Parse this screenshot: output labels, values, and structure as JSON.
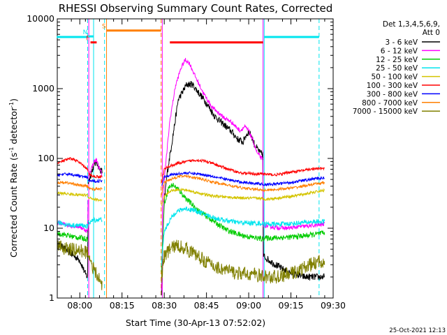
{
  "chart_data": {
    "type": "line",
    "title": "RHESSI Observing Summary Count Rates, Corrected",
    "xlabel": "Start Time (30-Apr-13 07:52:02)",
    "ylabel_main": "Corrected Count Rate (s",
    "ylabel_sup1": "-1",
    "ylabel_mid": " detector",
    "ylabel_sup2": "-1",
    "ylabel_end": ")",
    "footer": "25-Oct-2021 12:13",
    "x_unit": "minutes since 07:52:02",
    "xlim": [
      0,
      98
    ],
    "ylim": [
      1,
      10000
    ],
    "yscale": "log",
    "x_ticks": [
      {
        "label": "08:00",
        "min": 8
      },
      {
        "label": "08:15",
        "min": 23
      },
      {
        "label": "08:30",
        "min": 38
      },
      {
        "label": "08:45",
        "min": 53
      },
      {
        "label": "09:00",
        "min": 68
      },
      {
        "label": "09:15",
        "min": 83
      },
      {
        "label": "09:30",
        "min": 98
      }
    ],
    "y_ticks": [
      {
        "label": "1",
        "value": 1
      },
      {
        "label": "10",
        "value": 10
      },
      {
        "label": "100",
        "value": 100
      },
      {
        "label": "1000",
        "value": 1000
      },
      {
        "label": "10000",
        "value": 10000
      }
    ],
    "legend": {
      "header1": "Det 1,3,4,5,6,9,",
      "header2": "Att 0",
      "entries": [
        {
          "label": "3 - 6 keV",
          "color": "#000000"
        },
        {
          "label": "6 - 12 keV",
          "color": "#ff00ff"
        },
        {
          "label": "12 - 25 keV",
          "color": "#00cc00"
        },
        {
          "label": "25 - 50 keV",
          "color": "#00e5ee"
        },
        {
          "label": "50 - 100 keV",
          "color": "#d4c400"
        },
        {
          "label": "100 - 300 keV",
          "color": "#ff0000"
        },
        {
          "label": "300 - 800 keV",
          "color": "#0000ff"
        },
        {
          "label": "800 - 7000 keV",
          "color": "#ff7f00"
        },
        {
          "label": "7000 - 15000 keV",
          "color": "#808000"
        }
      ]
    },
    "segments": [
      {
        "from": 0,
        "to": 11
      },
      {
        "from": 11,
        "to": 16
      },
      {
        "from": 37,
        "to": 73
      },
      {
        "from": 73,
        "to": 95
      }
    ],
    "series": [
      {
        "name": "3 - 6 keV",
        "color": "#000000",
        "noise": 0.05,
        "points": [
          [
            0,
            6
          ],
          [
            3,
            5
          ],
          [
            6,
            4
          ],
          [
            8,
            3.5
          ],
          [
            10,
            2.2
          ],
          [
            10.8,
            2
          ],
          [
            11,
            45
          ],
          [
            12,
            60
          ],
          [
            13,
            80
          ],
          [
            14,
            90
          ],
          [
            15,
            70
          ],
          [
            16,
            65
          ],
          [
            37,
            1
          ],
          [
            37.8,
            20
          ],
          [
            39,
            60
          ],
          [
            41,
            200
          ],
          [
            43,
            700
          ],
          [
            46,
            1150
          ],
          [
            48,
            1150
          ],
          [
            50,
            900
          ],
          [
            53,
            620
          ],
          [
            56,
            400
          ],
          [
            59,
            310
          ],
          [
            62,
            240
          ],
          [
            64,
            190
          ],
          [
            66,
            170
          ],
          [
            67,
            215
          ],
          [
            68,
            240
          ],
          [
            69,
            210
          ],
          [
            70,
            160
          ],
          [
            72,
            120
          ],
          [
            73,
            115
          ],
          [
            73.2,
            4
          ],
          [
            76,
            3.3
          ],
          [
            80,
            2.6
          ],
          [
            84,
            2.2
          ],
          [
            88,
            2
          ],
          [
            92,
            2
          ],
          [
            95,
            2
          ]
        ]
      },
      {
        "name": "6 - 12 keV",
        "color": "#ff00ff",
        "noise": 0.03,
        "points": [
          [
            0,
            12
          ],
          [
            4,
            11
          ],
          [
            8,
            10.5
          ],
          [
            10.8,
            9
          ],
          [
            11,
            55
          ],
          [
            12,
            70
          ],
          [
            13,
            90
          ],
          [
            14,
            95
          ],
          [
            15,
            70
          ],
          [
            16,
            58
          ],
          [
            37,
            1.3
          ],
          [
            38,
            50
          ],
          [
            40,
            350
          ],
          [
            42,
            1100
          ],
          [
            44,
            2000
          ],
          [
            45.5,
            2600
          ],
          [
            47,
            2300
          ],
          [
            49,
            1500
          ],
          [
            52,
            850
          ],
          [
            55,
            540
          ],
          [
            59,
            390
          ],
          [
            62,
            330
          ],
          [
            64,
            270
          ],
          [
            65,
            250
          ],
          [
            66.5,
            285
          ],
          [
            68,
            250
          ],
          [
            69.5,
            180
          ],
          [
            71,
            120
          ],
          [
            73,
            95
          ],
          [
            73.2,
            11
          ],
          [
            77,
            10.3
          ],
          [
            82,
            10
          ],
          [
            86,
            10.5
          ],
          [
            92,
            11
          ],
          [
            95,
            11.5
          ]
        ]
      },
      {
        "name": "12 - 25 keV",
        "color": "#00cc00",
        "noise": 0.04,
        "points": [
          [
            0,
            8.5
          ],
          [
            3,
            8
          ],
          [
            6,
            7.5
          ],
          [
            8,
            7.3
          ],
          [
            10.8,
            7
          ],
          [
            37,
            2.5
          ],
          [
            38,
            22
          ],
          [
            39.5,
            38
          ],
          [
            41,
            42
          ],
          [
            43,
            36
          ],
          [
            46,
            26
          ],
          [
            50,
            18
          ],
          [
            55,
            13
          ],
          [
            60,
            9.5
          ],
          [
            65,
            8
          ],
          [
            70,
            7.3
          ],
          [
            73,
            7
          ],
          [
            73.2,
            7.2
          ],
          [
            78,
            7.3
          ],
          [
            84,
            7.5
          ],
          [
            90,
            8
          ],
          [
            95,
            8.5
          ]
        ]
      },
      {
        "name": "25 - 50 keV",
        "color": "#00e5ee",
        "noise": 0.035,
        "points": [
          [
            0,
            12
          ],
          [
            5,
            11
          ],
          [
            9,
            11
          ],
          [
            10.8,
            10.5
          ],
          [
            11,
            12
          ],
          [
            13,
            13
          ],
          [
            16,
            13.5
          ],
          [
            37,
            3
          ],
          [
            38,
            9
          ],
          [
            40,
            13
          ],
          [
            42,
            17
          ],
          [
            45,
            19
          ],
          [
            48,
            18.5
          ],
          [
            52,
            16
          ],
          [
            56,
            14
          ],
          [
            60,
            12.8
          ],
          [
            65,
            12
          ],
          [
            70,
            11.8
          ],
          [
            73,
            11.7
          ],
          [
            73.2,
            11.5
          ],
          [
            78,
            11.4
          ],
          [
            84,
            11.7
          ],
          [
            90,
            12.3
          ],
          [
            95,
            12.5
          ]
        ]
      },
      {
        "name": "50 - 100 keV",
        "color": "#d4c400",
        "noise": 0.02,
        "points": [
          [
            0,
            32
          ],
          [
            4,
            31
          ],
          [
            8,
            30
          ],
          [
            10.8,
            30
          ],
          [
            11,
            28
          ],
          [
            13,
            26
          ],
          [
            16,
            25
          ],
          [
            37,
            20
          ],
          [
            38,
            28
          ],
          [
            40,
            34
          ],
          [
            43,
            36
          ],
          [
            46,
            35
          ],
          [
            50,
            32
          ],
          [
            55,
            29
          ],
          [
            60,
            28
          ],
          [
            65,
            27
          ],
          [
            70,
            27
          ],
          [
            73,
            26.5
          ],
          [
            73.2,
            26
          ],
          [
            78,
            27
          ],
          [
            84,
            29
          ],
          [
            90,
            32
          ],
          [
            95,
            35
          ]
        ]
      },
      {
        "name": "100 - 300 keV",
        "color": "#ff0000",
        "noise": 0.02,
        "points": [
          [
            0,
            85
          ],
          [
            3,
            95
          ],
          [
            5,
            100
          ],
          [
            7,
            92
          ],
          [
            9,
            80
          ],
          [
            10.8,
            70
          ],
          [
            11,
            60
          ],
          [
            13,
            55
          ],
          [
            16,
            55
          ],
          [
            37,
            45
          ],
          [
            38,
            70
          ],
          [
            40,
            78
          ],
          [
            43,
            85
          ],
          [
            46,
            90
          ],
          [
            49,
            95
          ],
          [
            52,
            92
          ],
          [
            55,
            85
          ],
          [
            60,
            72
          ],
          [
            65,
            62
          ],
          [
            70,
            60
          ],
          [
            73,
            60
          ],
          [
            73.2,
            60
          ],
          [
            77,
            58
          ],
          [
            80,
            60
          ],
          [
            83,
            64
          ],
          [
            86,
            66
          ],
          [
            90,
            70
          ],
          [
            95,
            72
          ]
        ]
      },
      {
        "name": "300 - 800 keV",
        "color": "#0000ff",
        "noise": 0.02,
        "points": [
          [
            0,
            58
          ],
          [
            4,
            60
          ],
          [
            8,
            56
          ],
          [
            10.8,
            53
          ],
          [
            11,
            48
          ],
          [
            13,
            47
          ],
          [
            16,
            48
          ],
          [
            37,
            40
          ],
          [
            38,
            55
          ],
          [
            40,
            58
          ],
          [
            43,
            60
          ],
          [
            46,
            62
          ],
          [
            50,
            60
          ],
          [
            55,
            56
          ],
          [
            60,
            50
          ],
          [
            65,
            46
          ],
          [
            70,
            44
          ],
          [
            73,
            43
          ],
          [
            73.2,
            42
          ],
          [
            78,
            43
          ],
          [
            84,
            46
          ],
          [
            90,
            50
          ],
          [
            95,
            53
          ]
        ]
      },
      {
        "name": "800 - 7000 keV",
        "color": "#ff7f00",
        "noise": 0.02,
        "points": [
          [
            0,
            45
          ],
          [
            3,
            45
          ],
          [
            6,
            43
          ],
          [
            8,
            41
          ],
          [
            10.8,
            40
          ],
          [
            11,
            38
          ],
          [
            13,
            36
          ],
          [
            16,
            37
          ],
          [
            37,
            30
          ],
          [
            38,
            45
          ],
          [
            40,
            50
          ],
          [
            43,
            55
          ],
          [
            46,
            56
          ],
          [
            50,
            52
          ],
          [
            55,
            46
          ],
          [
            60,
            42
          ],
          [
            65,
            38
          ],
          [
            70,
            36
          ],
          [
            73,
            36
          ],
          [
            73.2,
            35
          ],
          [
            78,
            36
          ],
          [
            84,
            38
          ],
          [
            90,
            42
          ],
          [
            95,
            45
          ]
        ]
      },
      {
        "name": "7000 - 15000 keV",
        "color": "#808000",
        "noise": 0.1,
        "points": [
          [
            0,
            5.5
          ],
          [
            4,
            5
          ],
          [
            8,
            4.8
          ],
          [
            10.8,
            4.5
          ],
          [
            11,
            4.5
          ],
          [
            13,
            2.5
          ],
          [
            15,
            1.8
          ],
          [
            16,
            1.5
          ],
          [
            37,
            2
          ],
          [
            38,
            4
          ],
          [
            41,
            5.5
          ],
          [
            44,
            5.5
          ],
          [
            48,
            4.5
          ],
          [
            52,
            3.5
          ],
          [
            56,
            2.8
          ],
          [
            60,
            2.5
          ],
          [
            65,
            2.2
          ],
          [
            70,
            2.2
          ],
          [
            73,
            2
          ],
          [
            73.2,
            2
          ],
          [
            78,
            2
          ],
          [
            84,
            2.3
          ],
          [
            90,
            3
          ],
          [
            95,
            3.5
          ]
        ]
      }
    ],
    "vertical_lines": [
      {
        "min": -0.2,
        "color": "#00e5ee",
        "style": "solid"
      },
      {
        "min": 10.8,
        "color": "#00e5ee",
        "style": "dashed"
      },
      {
        "min": 16.8,
        "color": "#00e5ee",
        "style": "dashed"
      },
      {
        "min": 11.2,
        "color": "#ff00ff",
        "style": "solid"
      },
      {
        "min": 12.9,
        "color": "#00e5ee",
        "style": "solid"
      },
      {
        "min": 17.5,
        "color": "#ff7f00",
        "style": "solid"
      },
      {
        "min": 36.9,
        "color": "#ff7f00",
        "style": "dashed"
      },
      {
        "min": 37.3,
        "color": "#ff00ff",
        "style": "solid"
      },
      {
        "min": 73.1,
        "color": "#ff00ff",
        "style": "solid"
      },
      {
        "min": 73.5,
        "color": "#00e5ee",
        "style": "solid"
      },
      {
        "min": 93.0,
        "color": "#00e5ee",
        "style": "dashed"
      }
    ],
    "bars": [
      {
        "label": "",
        "from": -0.2,
        "to": 10.8,
        "value": 5500,
        "color": "#00e5ee"
      },
      {
        "label": "",
        "from": 73.5,
        "to": 93.0,
        "value": 5500,
        "color": "#00e5ee"
      },
      {
        "label": "F",
        "from": 11.8,
        "to": 14.0,
        "value": 4600,
        "color": "#ff0000"
      },
      {
        "label": "N",
        "from": 11.0,
        "to": 12.8,
        "value": 5600,
        "color": "#00e5ee"
      },
      {
        "label": "S",
        "from": 17.5,
        "to": 36.9,
        "value": 6800,
        "color": "#ff7f00"
      },
      {
        "label": "",
        "from": 40.0,
        "to": 73.1,
        "value": 4600,
        "color": "#ff0000"
      }
    ]
  }
}
